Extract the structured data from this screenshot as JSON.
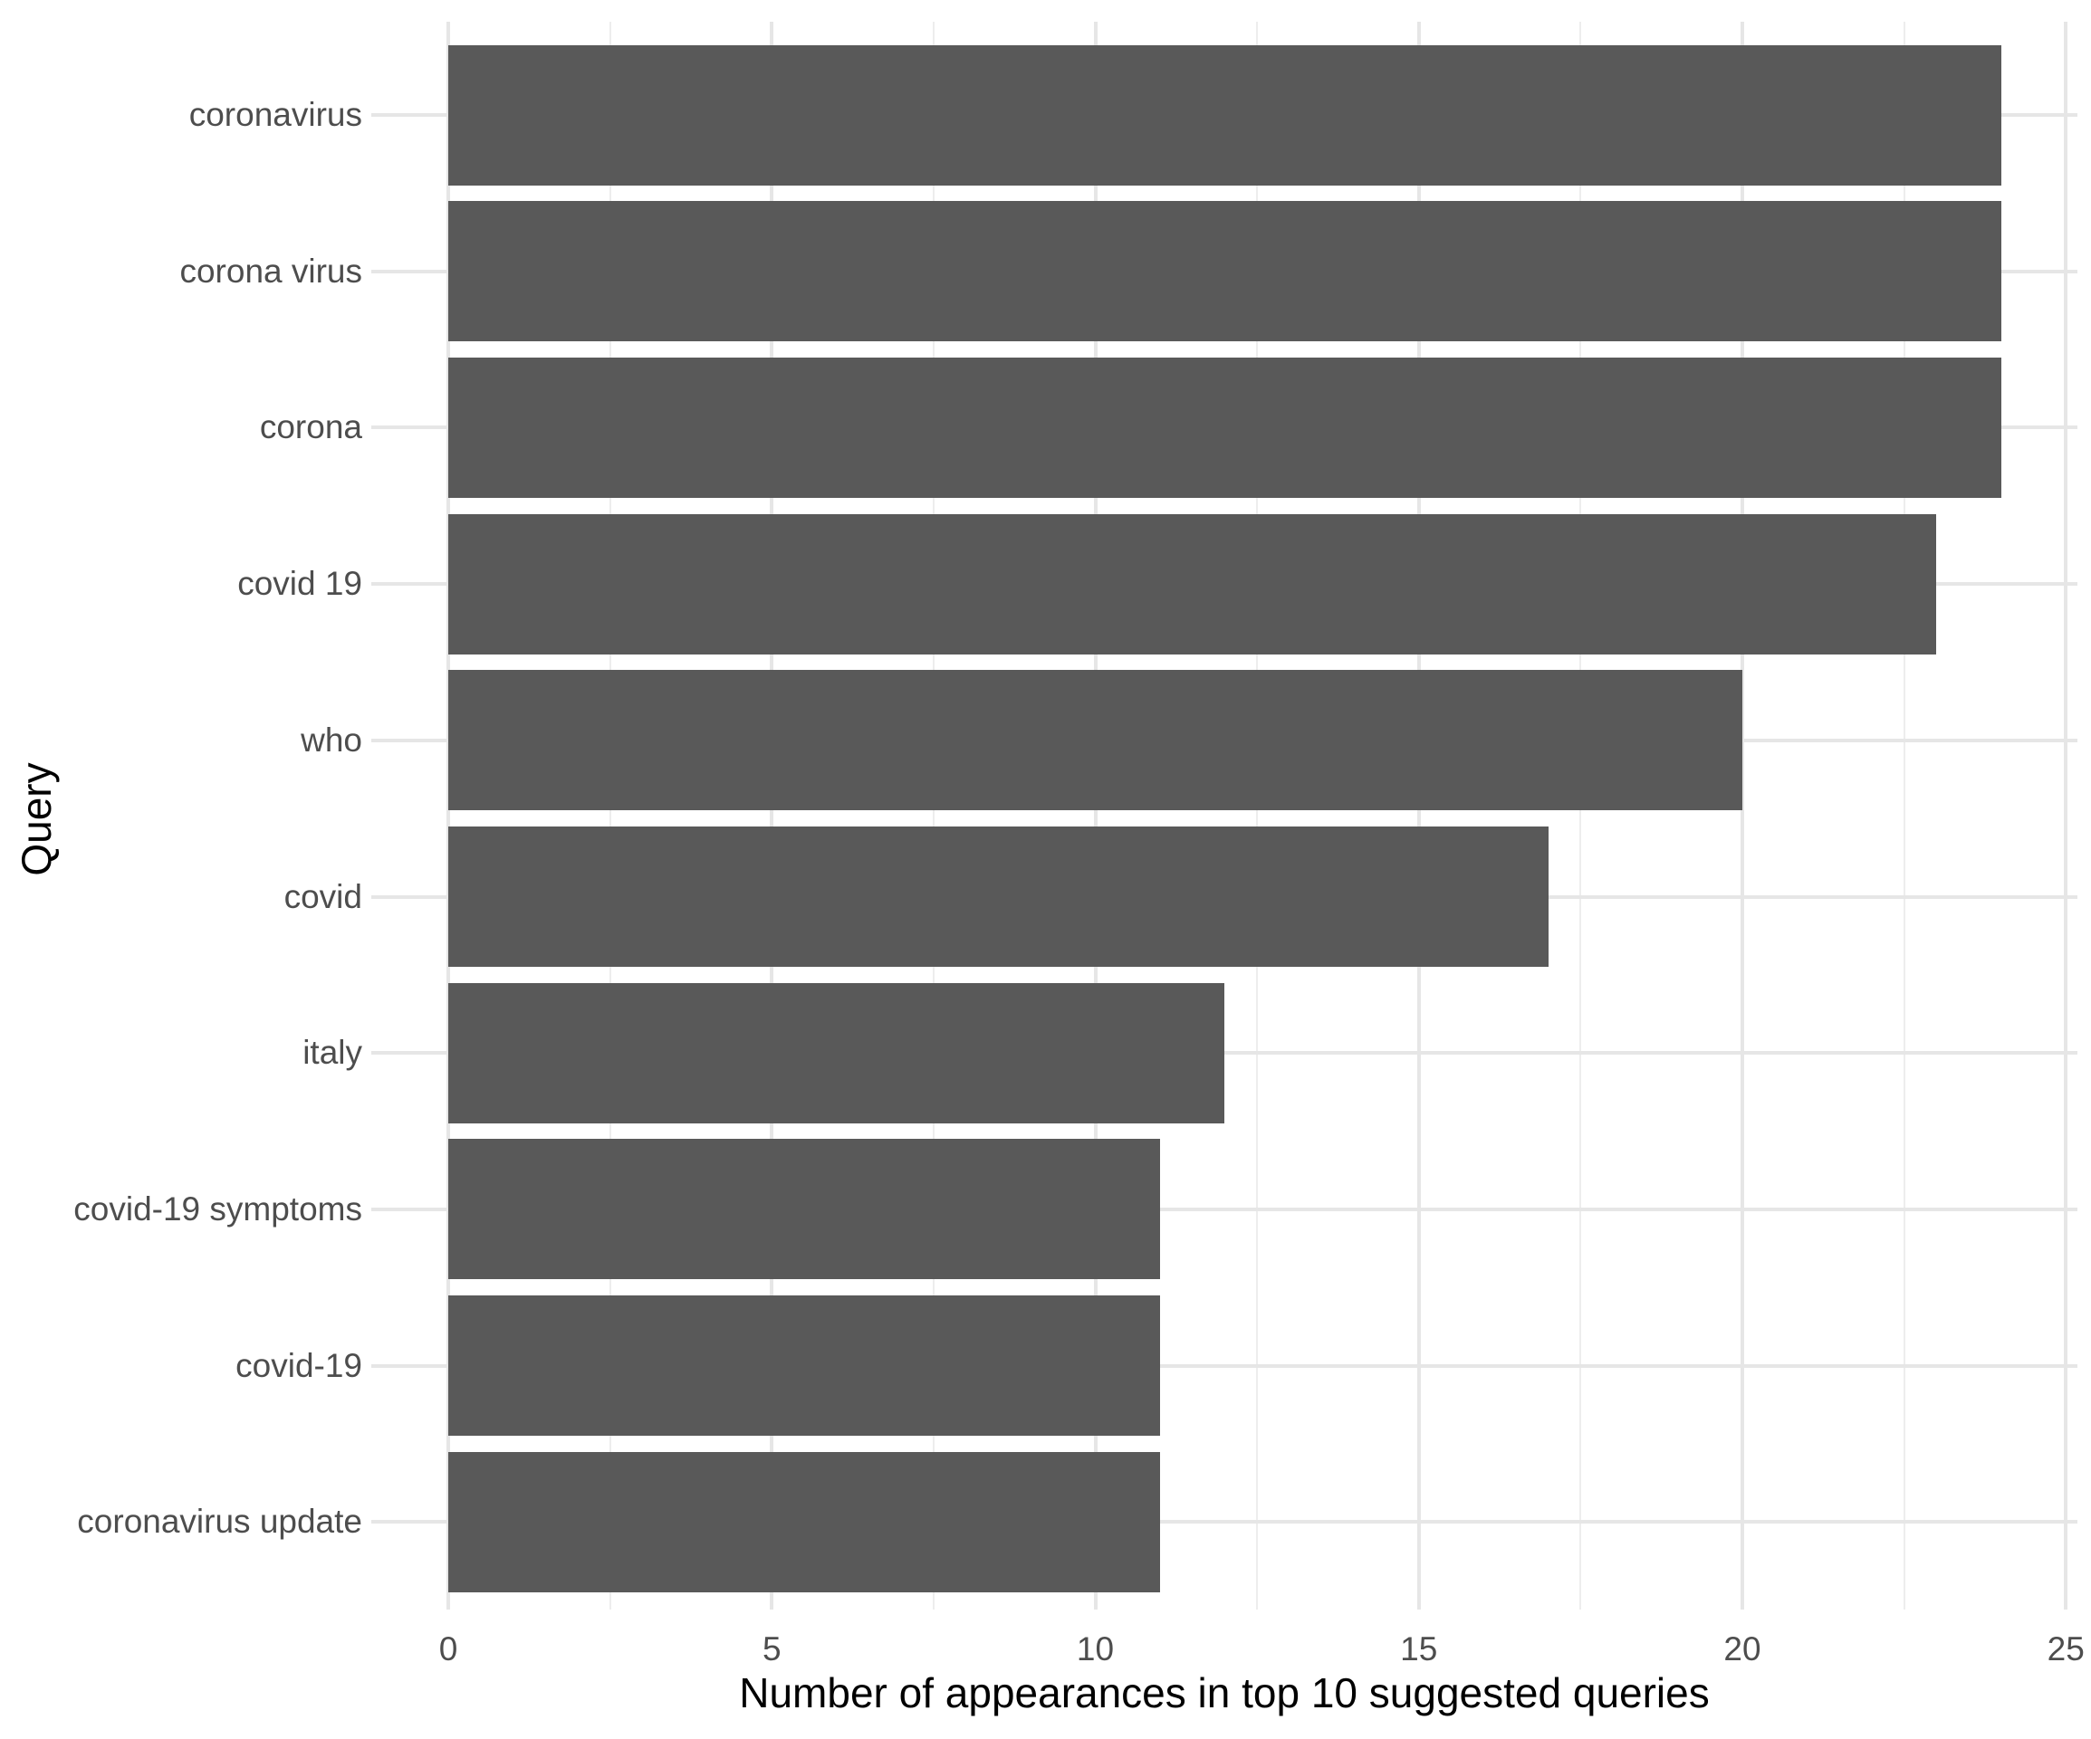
{
  "chart_data": {
    "type": "bar",
    "orientation": "horizontal",
    "title": "",
    "xlabel": "Number of appearances in top 10 suggested queries",
    "ylabel": "Query",
    "categories": [
      "coronavirus",
      "corona virus",
      "corona",
      "covid 19",
      "who",
      "covid",
      "italy",
      "covid-19 symptoms",
      "covid-19",
      "coronavirus update"
    ],
    "values": [
      24,
      24,
      24,
      23,
      20,
      17,
      12,
      11,
      11,
      11
    ],
    "xlim": [
      0,
      25
    ],
    "x_major_ticks": [
      0,
      5,
      10,
      15,
      20,
      25
    ],
    "x_tick_labels": [
      "0",
      "5",
      "10",
      "15",
      "20",
      "25"
    ],
    "x_minor_ticks": [
      2.5,
      7.5,
      12.5,
      17.5,
      22.5
    ],
    "grid": "major-and-minor",
    "legend_position": "none",
    "bar_color": "#595959",
    "background_color": "#FFFFFF"
  },
  "style": {
    "grid_major_color": "#E6E6E6",
    "grid_minor_color": "#EDEDED",
    "tick_label_color": "#4D4D4D",
    "axis_title_color": "#000000"
  }
}
